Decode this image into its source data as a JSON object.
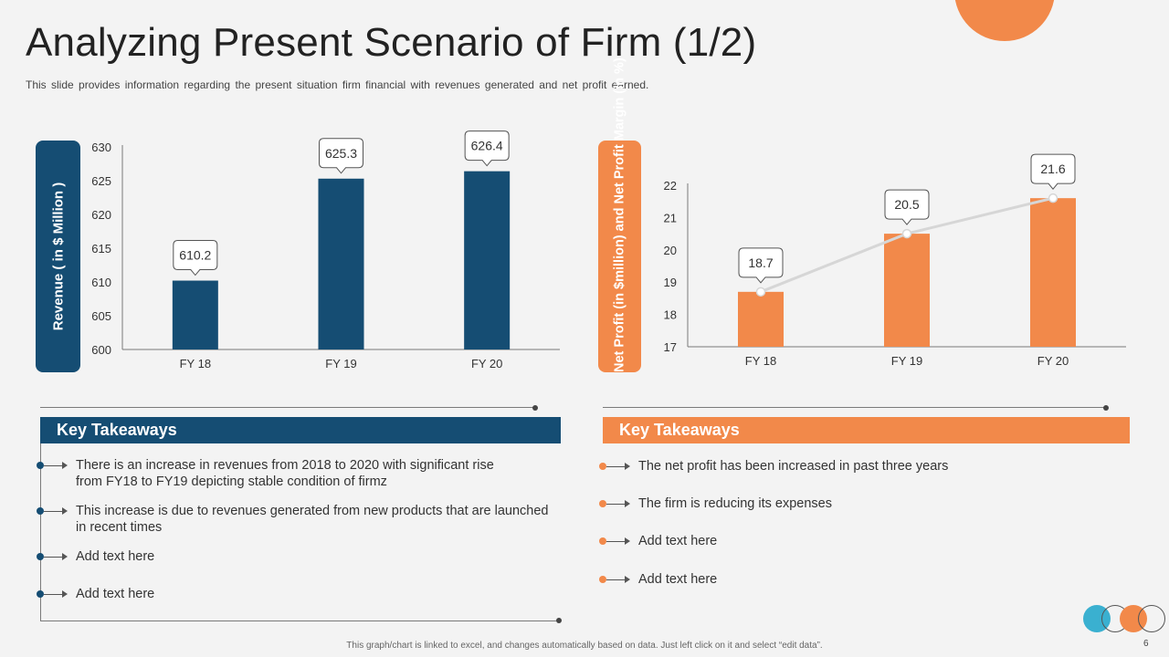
{
  "title": "Analyzing Present Scenario of Firm (1/2)",
  "subtitle": "This slide provides information regarding the present situation firm financial with revenues generated and net profit earned.",
  "colors": {
    "blue": "#154d73",
    "orange": "#f2894a",
    "line": "#d9d9d9",
    "background": "#f3f3f3"
  },
  "chart_data": [
    {
      "type": "bar",
      "ylabel": "Revenue ( in $ Million )",
      "categories": [
        "FY 18",
        "FY 19",
        "FY 20"
      ],
      "values": [
        610.2,
        625.3,
        626.4
      ],
      "data_labels": [
        "610.2",
        "625.3",
        "626.4"
      ],
      "ylim": [
        600,
        630
      ],
      "yticks": [
        "600",
        "605",
        "610",
        "615",
        "620",
        "625",
        "630"
      ],
      "grid": false
    },
    {
      "type": "bar",
      "ylabel": "Net Profit (in $million) and Net Profit Margin (in %)",
      "categories": [
        "FY 18",
        "FY 19",
        "FY 20"
      ],
      "values": [
        18.7,
        20.5,
        21.6
      ],
      "data_labels": [
        "18.7",
        "20.5",
        "21.6"
      ],
      "line_overlay": true,
      "ylim": [
        17,
        22
      ],
      "yticks": [
        "17",
        "18",
        "19",
        "20",
        "21",
        "22"
      ],
      "grid": false
    }
  ],
  "key_takeaways_left": {
    "heading": "Key Takeaways",
    "items": [
      "There is an increase in revenues from 2018 to 2020 with significant rise\nfrom FY18 to FY19 depicting stable condition of firmz",
      "This increase is due to revenues generated from new products that are launched\nin recent times",
      "Add text here",
      "Add text here"
    ]
  },
  "key_takeaways_right": {
    "heading": "Key Takeaways",
    "items": [
      "The net profit has been increased in past three years",
      "The firm is reducing its expenses",
      "Add text here",
      "Add text here"
    ]
  },
  "footer": "This graph/chart is linked to excel, and changes automatically based on data. Just left click on it and select “edit data”.",
  "page_number": "6"
}
